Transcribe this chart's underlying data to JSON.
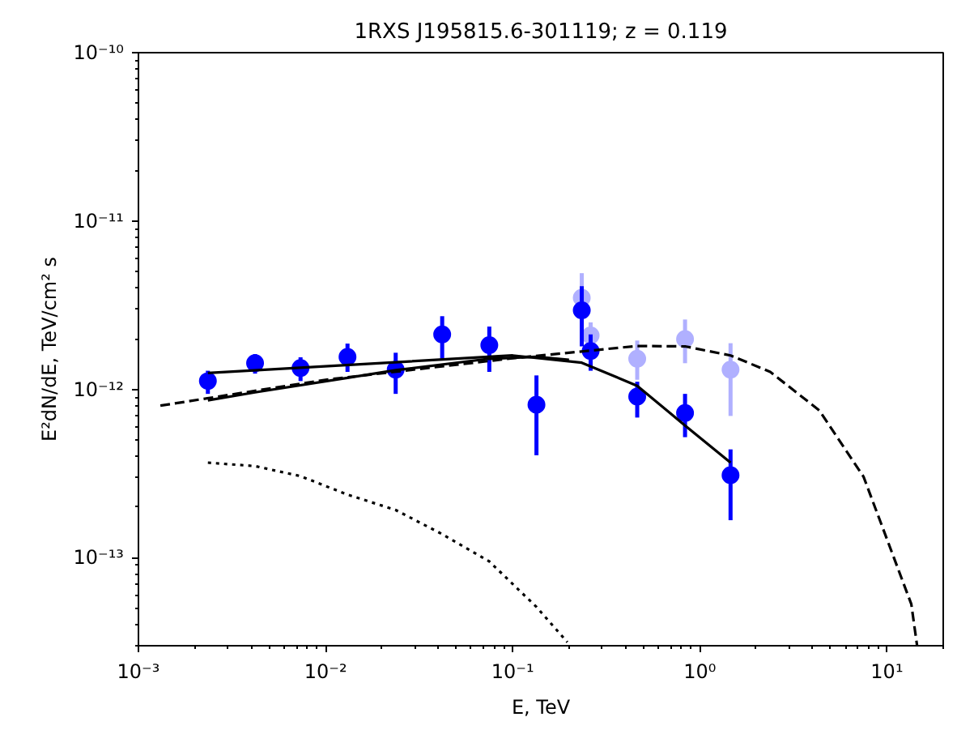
{
  "chart_data": {
    "type": "scatter",
    "title": "1RXS J195815.6-301119; z = 0.119",
    "xlabel": "E, TeV",
    "ylabel": "E²dN/dE, TeV/cm² s",
    "log": "xy",
    "grid": false,
    "xlim": [
      0.001,
      20
    ],
    "ylim": [
      3e-14,
      1e-10
    ],
    "xticks": [
      {
        "value": 0.001,
        "label": "10⁻³"
      },
      {
        "value": 0.01,
        "label": "10⁻²"
      },
      {
        "value": 0.1,
        "label": "10⁻¹"
      },
      {
        "value": 1,
        "label": "10⁰"
      },
      {
        "value": 10,
        "label": "10¹"
      }
    ],
    "yticks": [
      {
        "value": 1e-13,
        "label": "10⁻¹³"
      },
      {
        "value": 1e-12,
        "label": "10⁻¹²"
      },
      {
        "value": 1e-11,
        "label": "10⁻¹¹"
      },
      {
        "value": 1e-10,
        "label": "10⁻¹⁰"
      }
    ],
    "series": [
      {
        "color": "#b0b0ff",
        "marker": "circle",
        "x": [
          0.234,
          0.261,
          0.463,
          0.834,
          1.46
        ],
        "values": [
          3.5e-12,
          2.09e-12,
          1.52e-12,
          1.99e-12,
          1.31e-12
        ],
        "errors": [
          [
            2e-12,
            4.9e-12
          ],
          [
            1.65e-12,
            2.5e-12
          ],
          [
            1.14e-12,
            1.95e-12
          ],
          [
            1.43e-12,
            2.6e-12
          ],
          [
            6.95e-13,
            1.88e-12
          ]
        ]
      },
      {
        "color": "#0000ff",
        "marker": "circle",
        "x": [
          0.00235,
          0.0042,
          0.00735,
          0.0131,
          0.0237,
          0.042,
          0.075,
          0.134,
          0.234,
          0.261,
          0.463,
          0.834,
          1.46
        ],
        "values": [
          1.12e-12,
          1.43e-12,
          1.34e-12,
          1.56e-12,
          1.31e-12,
          2.12e-12,
          1.83e-12,
          8.1e-13,
          2.95e-12,
          1.69e-12,
          9.05e-13,
          7.24e-13,
          3.09e-13
        ],
        "errors": [
          [
            9.4e-13,
            1.29e-12
          ],
          [
            1.24e-12,
            1.62e-12
          ],
          [
            1.12e-12,
            1.55e-12
          ],
          [
            1.27e-12,
            1.87e-12
          ],
          [
            9.4e-13,
            1.65e-12
          ],
          [
            1.52e-12,
            2.72e-12
          ],
          [
            1.27e-12,
            2.36e-12
          ],
          [
            4.06e-13,
            1.21e-12
          ],
          [
            1.8e-12,
            4.1e-12
          ],
          [
            1.29e-12,
            2.12e-12
          ],
          [
            6.8e-13,
            1.11e-12
          ],
          [
            5.2e-13,
            9.4e-13
          ],
          [
            1.67e-13,
            4.4e-13
          ]
        ]
      },
      {
        "type": "line",
        "color": "#000000",
        "line_style": "solid",
        "x": [
          0.00235,
          0.0237,
          0.1,
          0.234,
          0.463,
          0.834,
          1.46
        ],
        "values": [
          1.25e-12,
          1.45e-12,
          1.59e-12,
          1.44e-12,
          1.05e-12,
          6.1e-13,
          3.67e-13
        ]
      },
      {
        "type": "line",
        "color": "#000000",
        "line_style": "solid",
        "x": [
          0.00235,
          0.0042,
          0.0131,
          0.0237,
          0.075,
          0.134,
          0.2
        ],
        "values": [
          8.6e-13,
          9.6e-13,
          1.17e-12,
          1.3e-12,
          1.52e-12,
          1.56e-12,
          1.5e-12
        ]
      },
      {
        "type": "line",
        "color": "#000000",
        "line_style": "dashed",
        "x": [
          0.00131,
          0.01,
          0.1,
          0.463,
          0.834,
          1.46,
          2.38,
          4.35,
          7.5,
          13.5,
          14.5
        ],
        "values": [
          8e-13,
          1.14e-12,
          1.53e-12,
          1.81e-12,
          1.8e-12,
          1.59e-12,
          1.27e-12,
          7.5e-13,
          3.03e-13,
          5.3e-14,
          3e-14
        ]
      },
      {
        "type": "line",
        "color": "#000000",
        "line_style": "dotted",
        "x": [
          0.00235,
          0.0042,
          0.00735,
          0.0131,
          0.0237,
          0.042,
          0.075,
          0.134,
          0.196
        ],
        "values": [
          3.67e-13,
          3.5e-13,
          3.05e-13,
          2.37e-13,
          1.92e-13,
          1.38e-13,
          9.5e-14,
          5.1e-14,
          3.15e-14
        ]
      }
    ]
  }
}
